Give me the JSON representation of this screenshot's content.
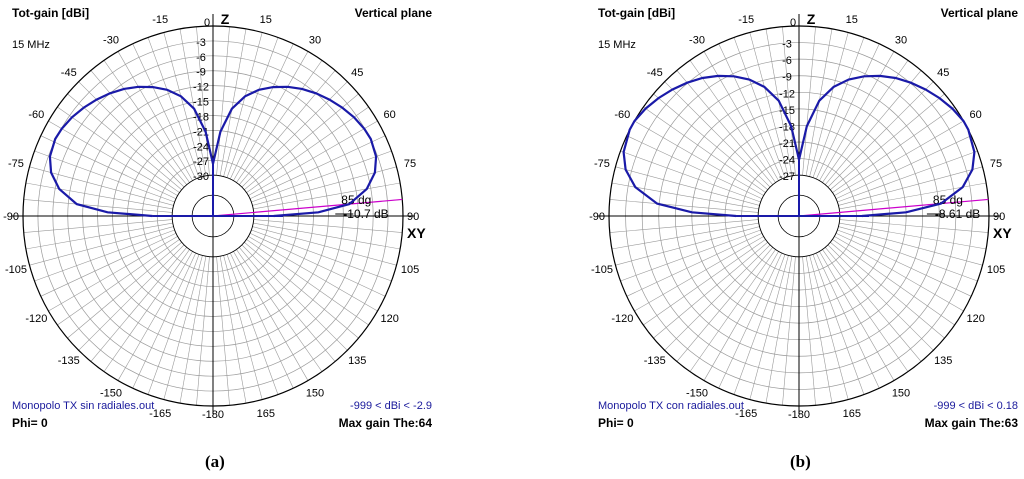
{
  "panels": [
    {
      "header_left": "Tot-gain [dBi]",
      "header_right": "Vertical plane",
      "frequency": "15 MHz",
      "axis_top": "Z",
      "axis_side": "XY",
      "source": "Monopolo TX sin radiales.out",
      "range": "-999 < dBi < -2.9",
      "phi": "Phi= 0",
      "max_gain": "Max gain The:64",
      "cursor_angle": "85 dg",
      "cursor_value": "-10.7 dB",
      "caption": "(a)"
    },
    {
      "header_left": "Tot-gain [dBi]",
      "header_right": "Vertical plane",
      "frequency": "15 MHz",
      "axis_top": "Z",
      "axis_side": "XY",
      "source": "Monopolo TX con radiales.out",
      "range": "-999 < dBi < 0.18",
      "phi": "Phi= 0",
      "max_gain": "Max gain The:63",
      "cursor_angle": "85 dg",
      "cursor_value": "-8.61 dB",
      "caption": "(b)"
    }
  ],
  "chart_data": [
    {
      "type": "polar",
      "angle_unit": "deg",
      "angle_ticks": [
        -180,
        -165,
        -150,
        -135,
        -120,
        -105,
        -90,
        -75,
        -60,
        -45,
        -30,
        -15,
        0,
        15,
        30,
        45,
        60,
        75,
        90,
        105,
        120,
        135,
        150,
        165
      ],
      "radial_ticks": [
        0,
        -3,
        -6,
        -9,
        -12,
        -15,
        -18,
        -21,
        -24,
        -27,
        -30
      ],
      "r_range": [
        -30,
        0
      ],
      "max_gain_dbi": -2.9,
      "max_gain_theta": 64,
      "cursor": {
        "theta": 85,
        "gain_db": -10.7
      },
      "series": [
        {
          "theta": [
            0,
            5,
            10,
            15,
            20,
            25,
            30,
            35,
            40,
            45,
            50,
            55,
            60,
            64,
            70,
            75,
            80,
            85,
            88,
            90
          ],
          "gain_dbi": [
            -27.7,
            -21.2,
            -16.3,
            -13.3,
            -11.2,
            -9.6,
            -8.2,
            -7.0,
            -6.0,
            -5.1,
            -4.3,
            -3.6,
            -3.1,
            -2.9,
            -3.3,
            -4.5,
            -6.8,
            -10.7,
            -17,
            -26
          ]
        }
      ],
      "colors": {
        "pattern": "#1a1aa8",
        "cursor": "#cc00cc"
      }
    },
    {
      "type": "polar",
      "angle_unit": "deg",
      "angle_ticks": [
        -180,
        -165,
        -150,
        -135,
        -120,
        -105,
        -90,
        -75,
        -60,
        -45,
        -30,
        -15,
        0,
        15,
        30,
        45,
        60,
        75,
        90,
        105,
        120,
        135,
        150,
        165
      ],
      "radial_ticks": [
        0,
        -3,
        -6,
        -9,
        -12,
        -15,
        -18,
        -21,
        -24,
        -27
      ],
      "r_range": [
        -27,
        0
      ],
      "max_gain_dbi": 0.18,
      "max_gain_theta": 63,
      "cursor": {
        "theta": 85,
        "gain_db": -8.61
      },
      "series": [
        {
          "theta": [
            0,
            5,
            10,
            15,
            20,
            25,
            30,
            35,
            40,
            45,
            50,
            55,
            60,
            63,
            70,
            75,
            80,
            85,
            88,
            90
          ],
          "gain_dbi": [
            -24.2,
            -18.1,
            -13.2,
            -10.2,
            -8.1,
            -6.5,
            -5.1,
            -3.9,
            -2.9,
            -2.0,
            -1.2,
            -0.5,
            0.0,
            0.18,
            -0.6,
            -1.9,
            -4.3,
            -8.61,
            -15,
            -23
          ]
        }
      ],
      "colors": {
        "pattern": "#1a1aa8",
        "cursor": "#cc00cc"
      }
    }
  ]
}
